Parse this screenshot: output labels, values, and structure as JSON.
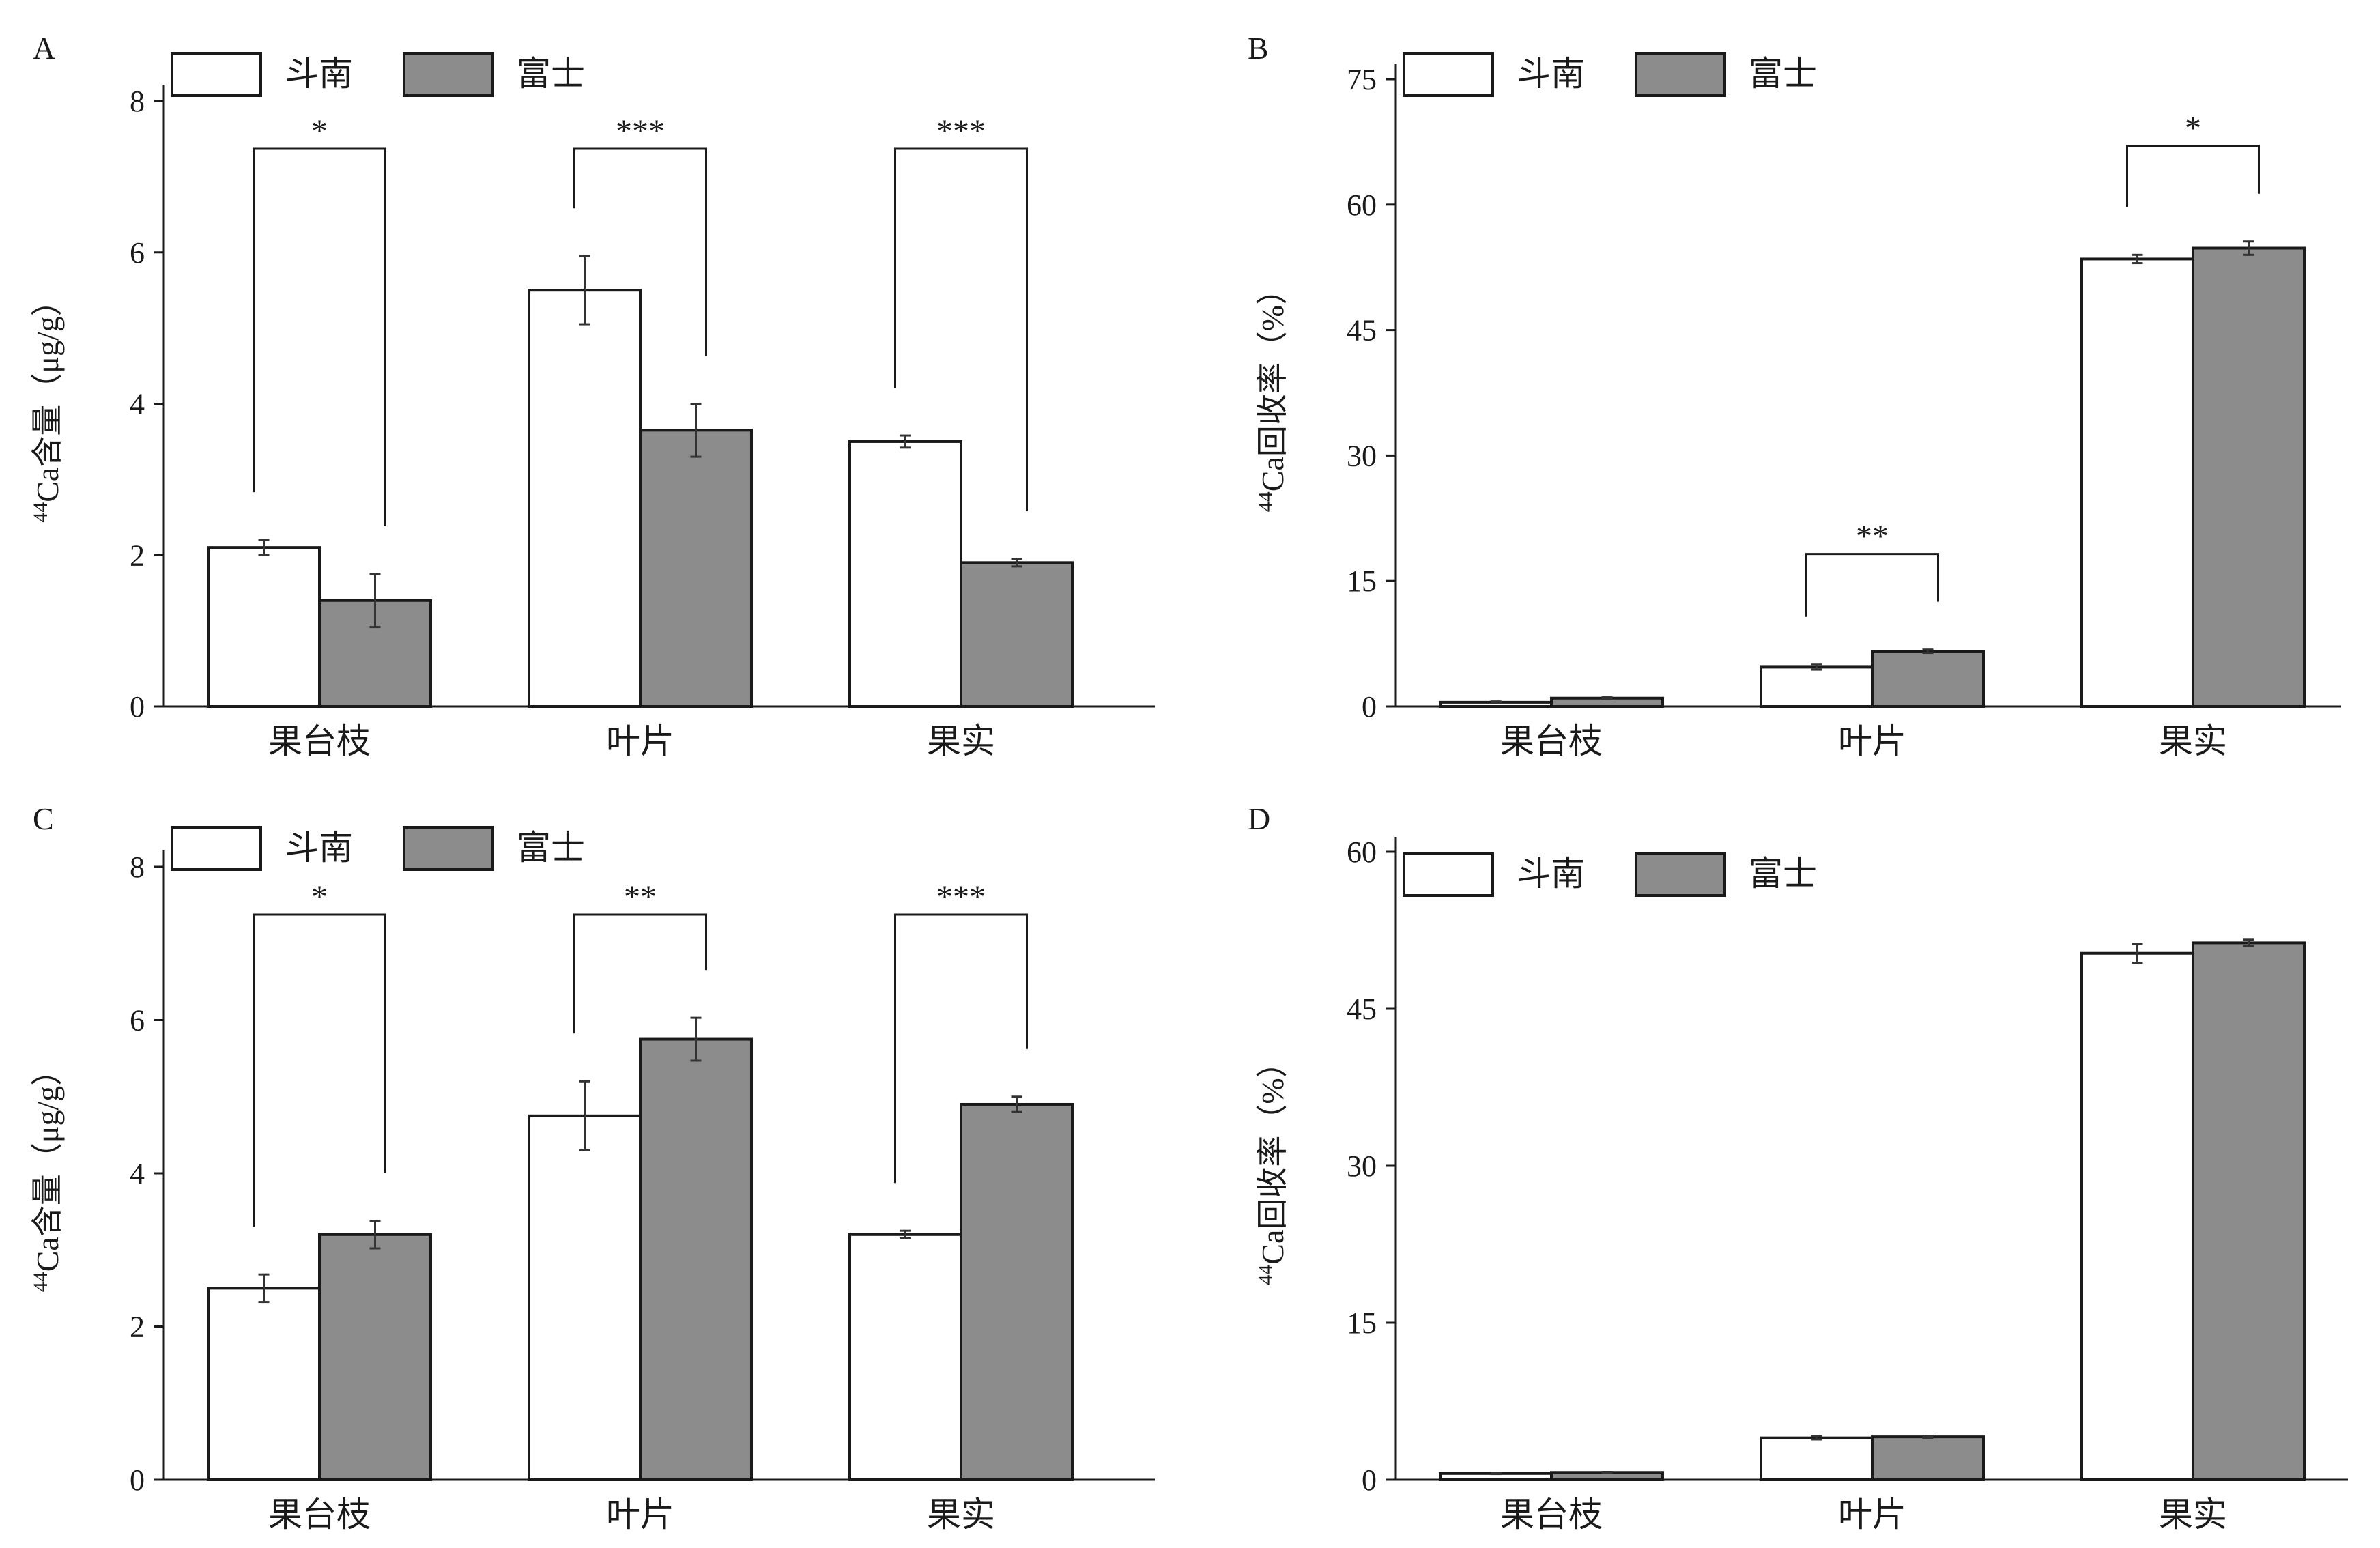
{
  "legend": {
    "series_names": [
      "斗南",
      "富士"
    ]
  },
  "colors": {
    "斗南": "#ffffff",
    "富士": "#8c8c8c",
    "outline": "#1a1a1a"
  },
  "chart_data": [
    {
      "type": "bar",
      "panel_label": "A",
      "categories": [
        "果台枝",
        "叶片",
        "果实"
      ],
      "series": [
        {
          "name": "斗南",
          "values": [
            2.1,
            5.5,
            3.5
          ],
          "errors": [
            0.1,
            0.45,
            0.08
          ]
        },
        {
          "name": "富士",
          "values": [
            1.4,
            3.65,
            1.9
          ],
          "errors": [
            0.35,
            0.35,
            0.05
          ]
        }
      ],
      "significance": [
        "*",
        "***",
        "***"
      ],
      "ylabel_sup": "44",
      "ylabel": "Ca含量（μg/g）",
      "ylim": [
        0,
        8
      ],
      "yticks": [
        0,
        2,
        4,
        6,
        8
      ],
      "legend_position": "top-left",
      "grid": false
    },
    {
      "type": "bar",
      "panel_label": "B",
      "categories": [
        "果台枝",
        "叶片",
        "果实"
      ],
      "series": [
        {
          "name": "斗南",
          "values": [
            0.5,
            4.7,
            53.5
          ],
          "errors": [
            0.1,
            0.3,
            0.5
          ]
        },
        {
          "name": "富士",
          "values": [
            1.0,
            6.6,
            54.8
          ],
          "errors": [
            0.1,
            0.2,
            0.8
          ]
        }
      ],
      "significance": [
        "",
        "**",
        "*"
      ],
      "ylabel_sup": "44",
      "ylabel": "Ca回收率（%）",
      "ylim": [
        0,
        75
      ],
      "yticks": [
        0,
        15,
        30,
        45,
        60,
        75
      ],
      "legend_position": "top-left",
      "grid": false
    },
    {
      "type": "bar",
      "panel_label": "C",
      "categories": [
        "果台枝",
        "叶片",
        "果实"
      ],
      "series": [
        {
          "name": "斗南",
          "values": [
            2.5,
            4.75,
            3.2
          ],
          "errors": [
            0.18,
            0.45,
            0.05
          ]
        },
        {
          "name": "富士",
          "values": [
            3.2,
            5.75,
            4.9
          ],
          "errors": [
            0.18,
            0.28,
            0.1
          ]
        }
      ],
      "significance": [
        "*",
        "**",
        "***"
      ],
      "ylabel_sup": "44",
      "ylabel": "Ca含量（μg/g）",
      "ylim": [
        0,
        8
      ],
      "yticks": [
        0,
        2,
        4,
        6,
        8
      ],
      "legend_position": "top-left",
      "grid": false
    },
    {
      "type": "bar",
      "panel_label": "D",
      "categories": [
        "果台枝",
        "叶片",
        "果实"
      ],
      "series": [
        {
          "name": "斗南",
          "values": [
            0.6,
            4.0,
            50.3
          ],
          "errors": [
            0.05,
            0.15,
            0.9
          ]
        },
        {
          "name": "富士",
          "values": [
            0.7,
            4.1,
            51.3
          ],
          "errors": [
            0.05,
            0.1,
            0.3
          ]
        }
      ],
      "significance": [
        "",
        "",
        ""
      ],
      "ylabel_sup": "44",
      "ylabel": "Ca回收率（%）",
      "ylim": [
        0,
        60
      ],
      "yticks": [
        0,
        15,
        30,
        45,
        60
      ],
      "legend_position": "top-left",
      "grid": false
    }
  ]
}
